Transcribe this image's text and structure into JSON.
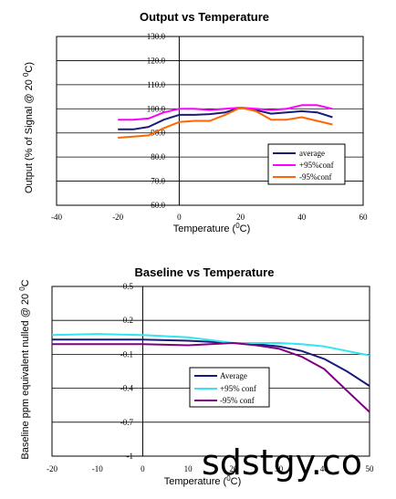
{
  "chart_data": [
    {
      "type": "line",
      "title": "Output vs Temperature",
      "xlabel": "Temperature (",
      "xlabel_sup": "0",
      "xlabel_end": "C)",
      "ylabel": "Output (% of Signal @ 20 ",
      "ylabel_sup": "0",
      "ylabel_end": "C)",
      "xlim": [
        -40,
        60
      ],
      "ylim": [
        60,
        130
      ],
      "x_ticks": [
        "-40",
        "-20",
        "0",
        "20",
        "40",
        "60"
      ],
      "y_ticks": [
        "60.0",
        "70.0",
        "80.0",
        "90.0",
        "100.0",
        "110.0",
        "120.0",
        "130.0"
      ],
      "grid": "horizontal",
      "legend_position": "lower-right",
      "series": [
        {
          "name": "average",
          "color": "#1a1a7a",
          "x": [
            -20,
            -15,
            -10,
            -5,
            0,
            5,
            10,
            15,
            20,
            25,
            30,
            35,
            40,
            45,
            50
          ],
          "values": [
            91.5,
            91.5,
            92.5,
            95.5,
            97.5,
            97.5,
            97.8,
            98.5,
            100.5,
            99.5,
            98,
            98.5,
            99,
            98.5,
            96.5
          ]
        },
        {
          "name": "+95%conf",
          "color": "#ff00ff",
          "x": [
            -20,
            -15,
            -10,
            -5,
            0,
            5,
            10,
            15,
            20,
            25,
            30,
            35,
            40,
            45,
            50
          ],
          "values": [
            95.5,
            95.5,
            96,
            98.5,
            100,
            100,
            99.5,
            100,
            100.5,
            100,
            99.5,
            100,
            101.5,
            101.5,
            100
          ]
        },
        {
          "name": "-95%conf",
          "color": "#ff6600",
          "x": [
            -20,
            -15,
            -10,
            -5,
            0,
            5,
            10,
            15,
            20,
            25,
            30,
            35,
            40,
            45,
            50
          ],
          "values": [
            88,
            88.5,
            89,
            92,
            94.5,
            95,
            95,
            97.5,
            100.5,
            99,
            95.5,
            95.5,
            96.5,
            95,
            93.5
          ]
        }
      ]
    },
    {
      "type": "line",
      "title": "Baseline vs Temperature",
      "xlabel": "Temperature (",
      "xlabel_sup": "0",
      "xlabel_end": "C)",
      "ylabel": "Baseline ppm equivalent nulled @ 20 ",
      "ylabel_sup": "0",
      "ylabel_end": "C",
      "xlim": [
        -20,
        50
      ],
      "ylim": [
        -1,
        0.5
      ],
      "x_ticks": [
        "-20",
        "-10",
        "0",
        "10",
        "20",
        "30",
        "40",
        "50"
      ],
      "y_ticks": [
        "-1",
        "-0.7",
        "-0.4",
        "-0.1",
        "0.2",
        "0.5"
      ],
      "grid": "horizontal",
      "legend_position": "center-right",
      "series": [
        {
          "name": "Average",
          "color": "#1a1a7a",
          "x": [
            -20,
            -10,
            0,
            10,
            20,
            25,
            30,
            35,
            40,
            45,
            50
          ],
          "values": [
            0.03,
            0.03,
            0.03,
            0.02,
            0.0,
            -0.01,
            -0.03,
            -0.07,
            -0.14,
            -0.25,
            -0.38
          ]
        },
        {
          "name": "+95% conf",
          "color": "#33e5f0",
          "x": [
            -20,
            -10,
            0,
            10,
            20,
            25,
            30,
            35,
            40,
            45,
            50
          ],
          "values": [
            0.07,
            0.08,
            0.07,
            0.05,
            0.0,
            0.0,
            0.0,
            -0.01,
            -0.03,
            -0.07,
            -0.11
          ]
        },
        {
          "name": "-95% conf",
          "color": "#7f007f",
          "x": [
            -20,
            -10,
            0,
            10,
            20,
            25,
            30,
            35,
            40,
            45,
            50
          ],
          "values": [
            -0.01,
            -0.01,
            -0.01,
            -0.02,
            0.0,
            -0.02,
            -0.05,
            -0.12,
            -0.23,
            -0.42,
            -0.61
          ]
        }
      ]
    }
  ],
  "watermark": "sdstgy.co"
}
